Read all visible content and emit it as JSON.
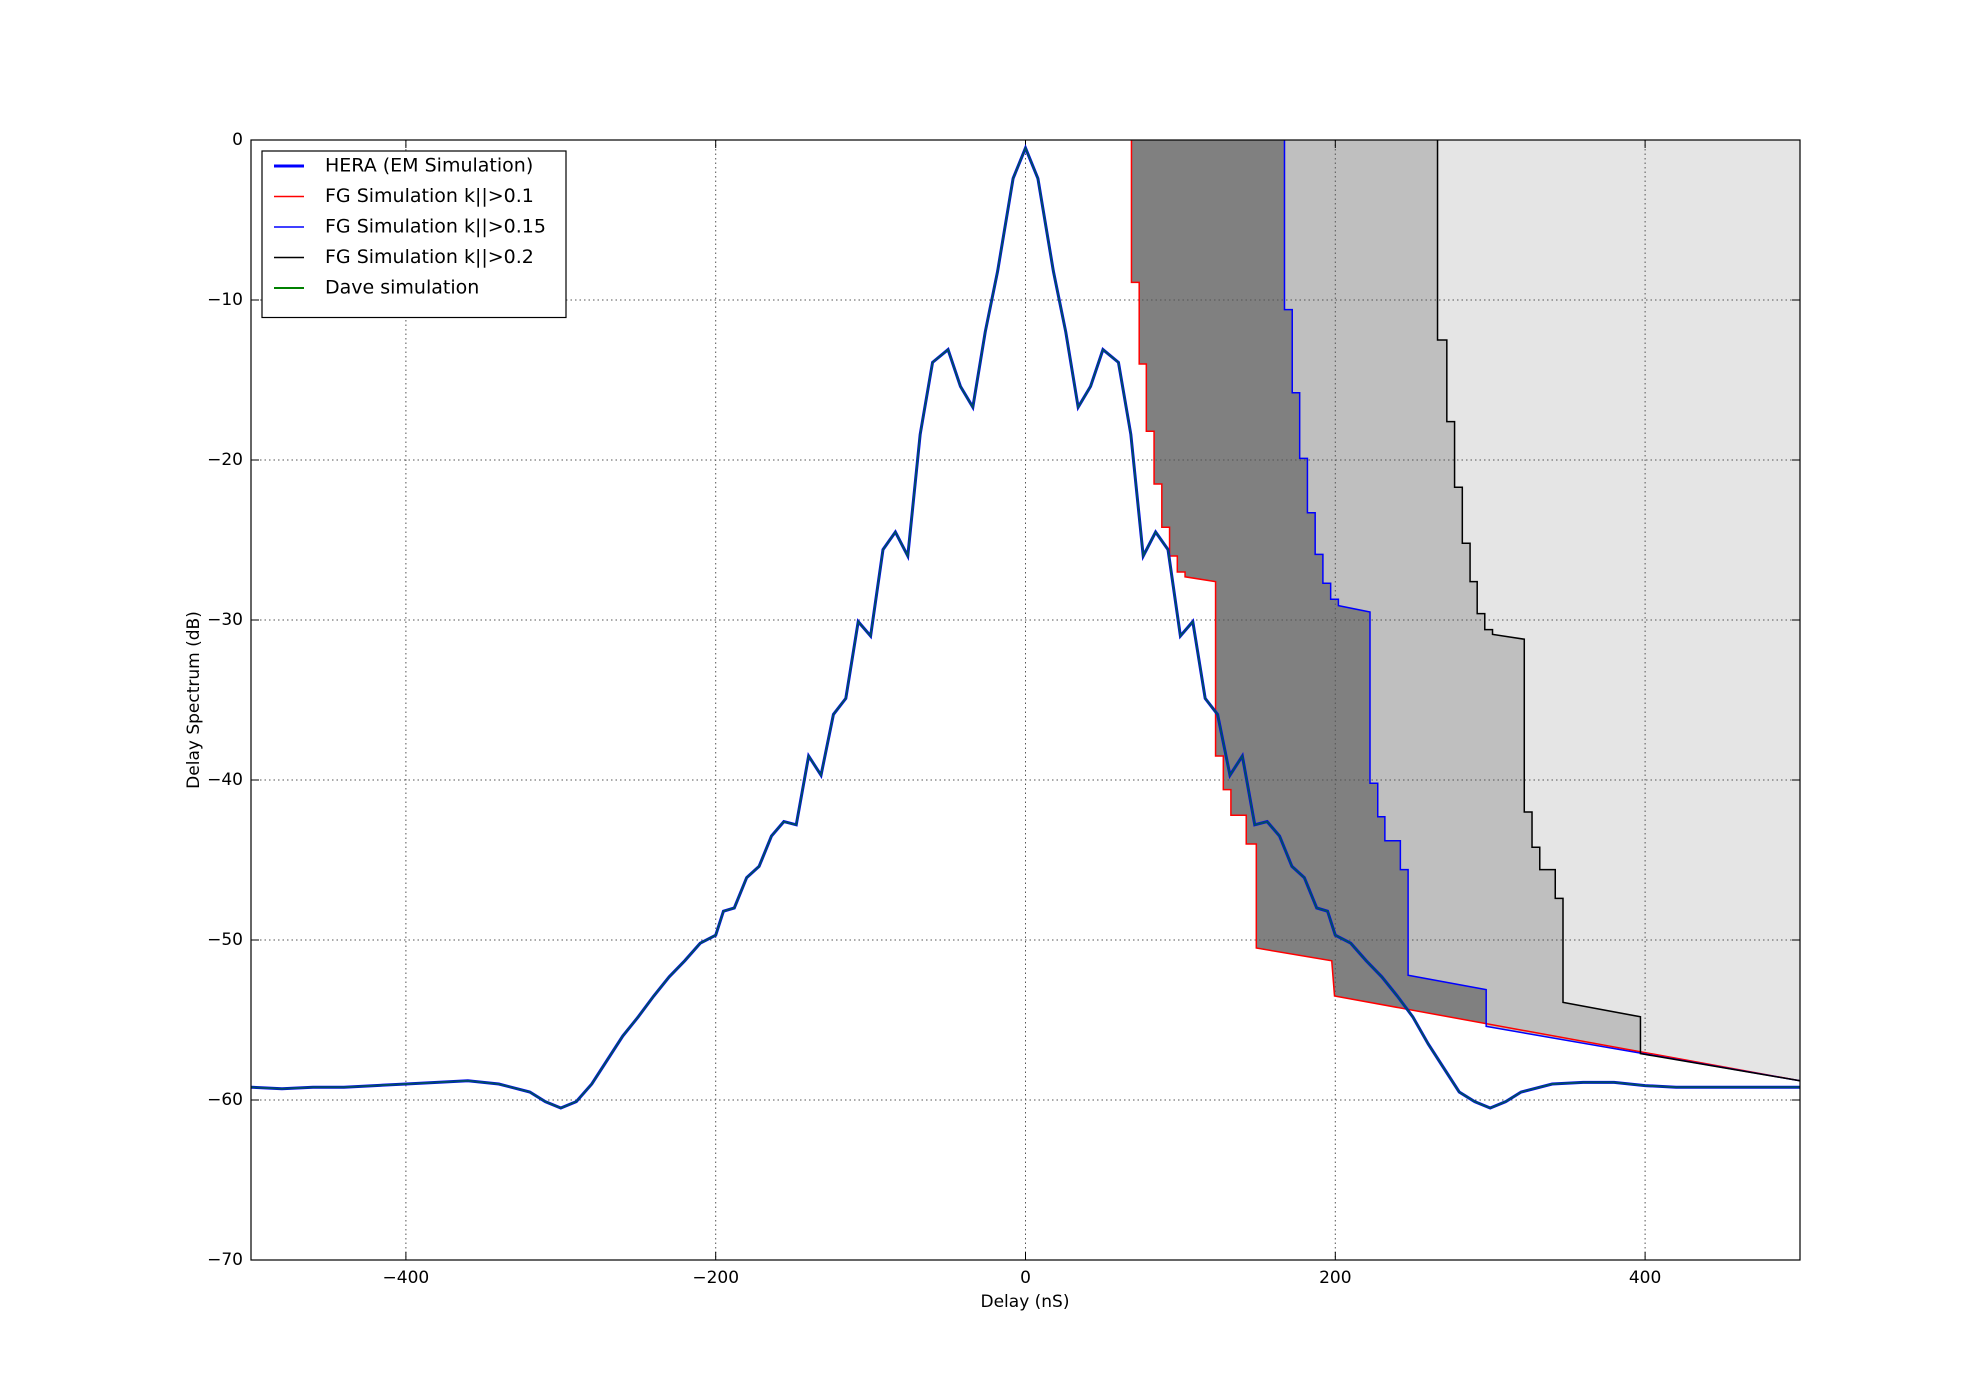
{
  "chart_data": {
    "type": "line",
    "xlabel": "Delay (nS)",
    "ylabel": "Delay Spectrum (dB)",
    "xlim": [
      -500,
      500
    ],
    "ylim": [
      -70,
      0
    ],
    "xticks": [
      {
        "value": -400,
        "label": "−400"
      },
      {
        "value": -200,
        "label": "−200"
      },
      0,
      200,
      400
    ],
    "yticks": [
      0,
      {
        "value": -10,
        "label": "−10"
      },
      {
        "value": -20,
        "label": "−20"
      },
      {
        "value": -30,
        "label": "−30"
      },
      {
        "value": -40,
        "label": "−40"
      },
      {
        "value": -50,
        "label": "−50"
      },
      {
        "value": -60,
        "label": "−60"
      },
      {
        "value": -70,
        "label": "−70"
      }
    ],
    "grid": true,
    "legend": "upper left",
    "series": [
      {
        "name": "HERA (EM Simulation)",
        "color": "#0000ff",
        "line_width": 3,
        "x": [
          -500,
          -480,
          -460,
          -440,
          -420,
          -400,
          -380,
          -360,
          -340,
          -320,
          -310,
          -300,
          -290,
          -280,
          -270,
          -260,
          -250,
          -240,
          -230,
          -220,
          -210,
          -200,
          -195,
          -188,
          -180,
          -172,
          -164,
          -156,
          -148,
          -140,
          -132,
          -124,
          -116,
          -108,
          -100,
          -92,
          -84,
          -76,
          -68,
          -60,
          -50,
          -42,
          -34,
          -26,
          -18,
          -8,
          0,
          8,
          18,
          26,
          34,
          42,
          50,
          60,
          68,
          76,
          84,
          92,
          100,
          108,
          116,
          124,
          132,
          140,
          148,
          156,
          164,
          172,
          180,
          188,
          195,
          200,
          210,
          220,
          230,
          240,
          250,
          260,
          270,
          280,
          290,
          300,
          310,
          320,
          340,
          360,
          380,
          400,
          420,
          440,
          460,
          480,
          500
        ],
        "values": [
          -59.2,
          -59.3,
          -59.2,
          -59.2,
          -59.1,
          -59.0,
          -58.9,
          -58.8,
          -59.0,
          -59.5,
          -60.1,
          -60.5,
          -60.1,
          -59,
          -57.5,
          -56,
          -54.8,
          -53.5,
          -52.3,
          -51.3,
          -50.2,
          -49.7,
          -48.2,
          -48,
          -46.1,
          -45.4,
          -43.5,
          -42.6,
          -42.8,
          -38.5,
          -39.7,
          -35.9,
          -34.9,
          -30.1,
          -31,
          -25.6,
          -24.5,
          -26,
          -18.4,
          -13.9,
          -13.1,
          -15.4,
          -16.7,
          -12,
          -8.2,
          -2.4,
          -0.5,
          -2.4,
          -8.2,
          -12,
          -16.7,
          -15.4,
          -13.1,
          -13.9,
          -18.4,
          -26,
          -24.5,
          -25.6,
          -31,
          -30.1,
          -34.9,
          -35.9,
          -39.7,
          -38.5,
          -42.8,
          -42.6,
          -43.5,
          -45.4,
          -46.1,
          -48,
          -48.2,
          -49.7,
          -50.2,
          -51.3,
          -52.3,
          -53.5,
          -54.8,
          -56.5,
          -58,
          -59.5,
          -60.1,
          -60.5,
          -60.1,
          -59.5,
          -59,
          -58.9,
          -58.9,
          -59.1,
          -59.2,
          -59.2,
          -59.2,
          -59.2,
          -59.2
        ]
      },
      {
        "name": "FG Simulation k||>0.1",
        "color": "#ff0000",
        "line_width": 1.5,
        "fill": "#808080",
        "x": [
          68.4,
          68.4,
          73.4,
          73.4,
          78,
          78,
          83,
          83,
          88,
          88,
          93,
          93,
          98,
          98,
          103,
          103,
          122.7,
          122.7,
          127.7,
          127.7,
          132.6,
          132.6,
          142.5,
          142.5,
          149,
          149,
          197.7,
          199.5,
          500
        ],
        "values": [
          0,
          -8.9,
          -8.9,
          -14,
          -14,
          -18.2,
          -18.2,
          -21.5,
          -21.5,
          -24.2,
          -24.2,
          -26,
          -26,
          -27,
          -27,
          -27.3,
          -27.6,
          -38.5,
          -38.5,
          -40.6,
          -40.6,
          -42.2,
          -42.2,
          -44,
          -44,
          -50.5,
          -51.3,
          -53.5,
          -58.8
        ]
      },
      {
        "name": "FG Simulation k||>0.15",
        "color": "#0000ff",
        "line_width": 1.5,
        "fill": "#bfbfbf",
        "x": [
          167.2,
          167.2,
          172.2,
          172.2,
          177,
          177,
          182,
          182,
          187,
          187,
          192,
          192,
          197,
          197,
          202,
          202,
          222.4,
          222.4,
          227.4,
          227.4,
          232,
          232,
          242,
          242,
          247,
          247,
          297.4,
          297.4,
          500
        ],
        "values": [
          0,
          -10.6,
          -10.6,
          -15.8,
          -15.8,
          -19.9,
          -19.9,
          -23.3,
          -23.3,
          -25.9,
          -25.9,
          -27.7,
          -27.7,
          -28.7,
          -28.7,
          -29.1,
          -29.5,
          -40.2,
          -40.2,
          -42.3,
          -42.3,
          -43.8,
          -43.8,
          -45.6,
          -45.6,
          -52.2,
          -53.1,
          -55.4,
          -58.8
        ]
      },
      {
        "name": "FG Simulation k||>0.2",
        "color": "#000000",
        "line_width": 1.5,
        "fill": "#e5e5e5",
        "x": [
          266,
          266,
          272,
          272,
          277,
          277,
          282,
          282,
          287,
          287,
          291.6,
          291.6,
          296.5,
          296.5,
          301.5,
          301.5,
          322,
          322,
          327,
          327,
          332,
          332,
          342,
          342,
          347,
          347,
          397,
          397,
          500
        ],
        "values": [
          0,
          -12.5,
          -12.5,
          -17.6,
          -17.6,
          -21.7,
          -21.7,
          -25.2,
          -25.2,
          -27.6,
          -27.6,
          -29.6,
          -29.6,
          -30.6,
          -30.6,
          -30.9,
          -31.2,
          -42,
          -42,
          -44.2,
          -44.2,
          -45.6,
          -45.6,
          -47.4,
          -47.4,
          -53.9,
          -54.8,
          -57.1,
          -58.8
        ]
      },
      {
        "name": "Dave simulation",
        "color": "#008000",
        "line_width": 2,
        "x": [
          -500,
          -480,
          -460,
          -440,
          -420,
          -400,
          -380,
          -360,
          -340,
          -320,
          -310,
          -300,
          -290,
          -280,
          -270,
          -260,
          -250,
          -240,
          -230,
          -220,
          -210,
          -200,
          -195,
          -188,
          -180,
          -172,
          -164,
          -156,
          -148,
          -140,
          -132,
          -124,
          -116,
          -108,
          -100,
          -92,
          -84,
          -76,
          -68,
          -60,
          -50,
          -42,
          -34,
          -26,
          -18,
          -8,
          0,
          8,
          18,
          26,
          34,
          42,
          50,
          60,
          68,
          76,
          84,
          92,
          100,
          108,
          116,
          124,
          132,
          140,
          148,
          156,
          164,
          172,
          180,
          188,
          195,
          200,
          210,
          220,
          230,
          240,
          250,
          260,
          270,
          280,
          290,
          300,
          310,
          320,
          340,
          360,
          380,
          400,
          420,
          440,
          460,
          480,
          500
        ],
        "values": [
          -59.2,
          -59.3,
          -59.2,
          -59.2,
          -59.1,
          -59.0,
          -58.9,
          -58.8,
          -59.0,
          -59.5,
          -60.1,
          -60.5,
          -60.1,
          -59,
          -57.5,
          -56,
          -54.8,
          -53.5,
          -52.3,
          -51.3,
          -50.2,
          -49.7,
          -48.2,
          -48,
          -46.1,
          -45.4,
          -43.5,
          -42.6,
          -42.8,
          -38.5,
          -39.7,
          -35.9,
          -34.9,
          -30.1,
          -31,
          -25.6,
          -24.5,
          -26,
          -18.4,
          -13.9,
          -13.1,
          -15.4,
          -16.7,
          -12,
          -8.2,
          -2.4,
          -0.5,
          -2.4,
          -8.2,
          -12,
          -16.7,
          -15.4,
          -13.1,
          -13.9,
          -18.4,
          -26,
          -24.5,
          -25.6,
          -31,
          -30.1,
          -34.9,
          -35.9,
          -39.7,
          -38.5,
          -42.8,
          -42.6,
          -43.5,
          -45.4,
          -46.1,
          -48,
          -48.2,
          -49.7,
          -50.2,
          -51.3,
          -52.3,
          -53.5,
          -54.8,
          -56.5,
          -58,
          -59.5,
          -60.1,
          -60.5,
          -60.1,
          -59.5,
          -59,
          -58.9,
          -58.9,
          -59.1,
          -59.2,
          -59.2,
          -59.2,
          -59.2,
          -59.2
        ]
      }
    ]
  }
}
